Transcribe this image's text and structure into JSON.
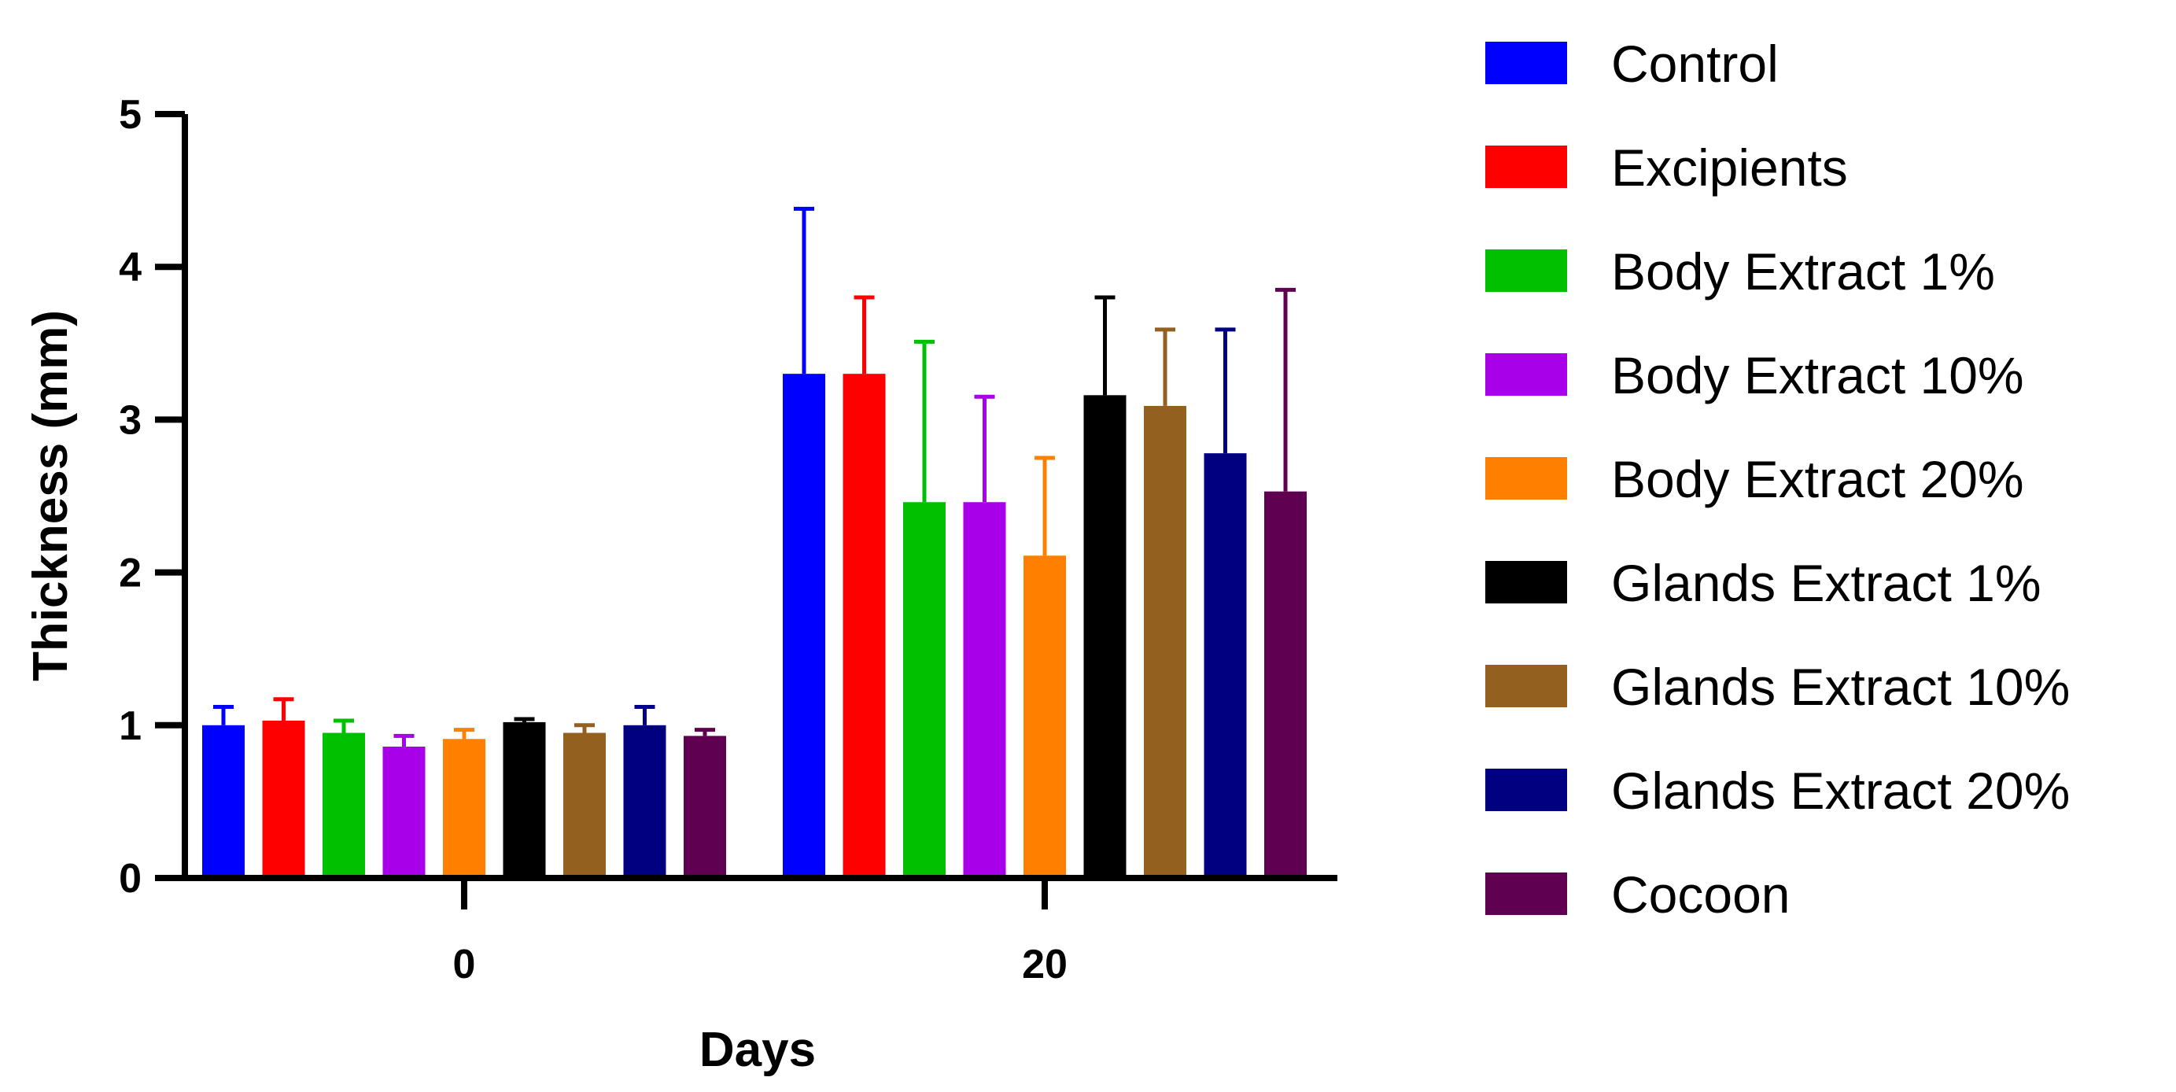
{
  "chart_data": {
    "type": "bar",
    "title": "",
    "xlabel": "Days",
    "ylabel": "Thickness (mm)",
    "ylim": [
      0,
      5
    ],
    "yticks": [
      0,
      1,
      2,
      3,
      4,
      5
    ],
    "categories": [
      "0",
      "20"
    ],
    "error_bars": "upper",
    "legend_position": "right",
    "series": [
      {
        "name": "Control",
        "color": "#0000ff",
        "values": [
          1.0,
          3.3
        ],
        "errors": [
          0.12,
          1.08
        ]
      },
      {
        "name": "Excipients",
        "color": "#ff0000",
        "values": [
          1.03,
          3.3
        ],
        "errors": [
          0.14,
          0.5
        ]
      },
      {
        "name": "Body Extract 1%",
        "color": "#00c000",
        "values": [
          0.95,
          2.46
        ],
        "errors": [
          0.08,
          1.05
        ]
      },
      {
        "name": "Body Extract 10%",
        "color": "#a800e8",
        "values": [
          0.86,
          2.46
        ],
        "errors": [
          0.07,
          0.69
        ]
      },
      {
        "name": "Body Extract 20%",
        "color": "#ff8000",
        "values": [
          0.91,
          2.11
        ],
        "errors": [
          0.06,
          0.64
        ]
      },
      {
        "name": "Glands Extract 1%",
        "color": "#000000",
        "values": [
          1.02,
          3.16
        ],
        "errors": [
          0.02,
          0.64
        ]
      },
      {
        "name": "Glands Extract 10%",
        "color": "#936020",
        "values": [
          0.95,
          3.09
        ],
        "errors": [
          0.05,
          0.5
        ]
      },
      {
        "name": "Glands Extract 20%",
        "color": "#000080",
        "values": [
          1.0,
          2.78
        ],
        "errors": [
          0.12,
          0.81
        ]
      },
      {
        "name": "Cocoon",
        "color": "#600050",
        "values": [
          0.93,
          2.53
        ],
        "errors": [
          0.04,
          1.32
        ]
      }
    ]
  }
}
